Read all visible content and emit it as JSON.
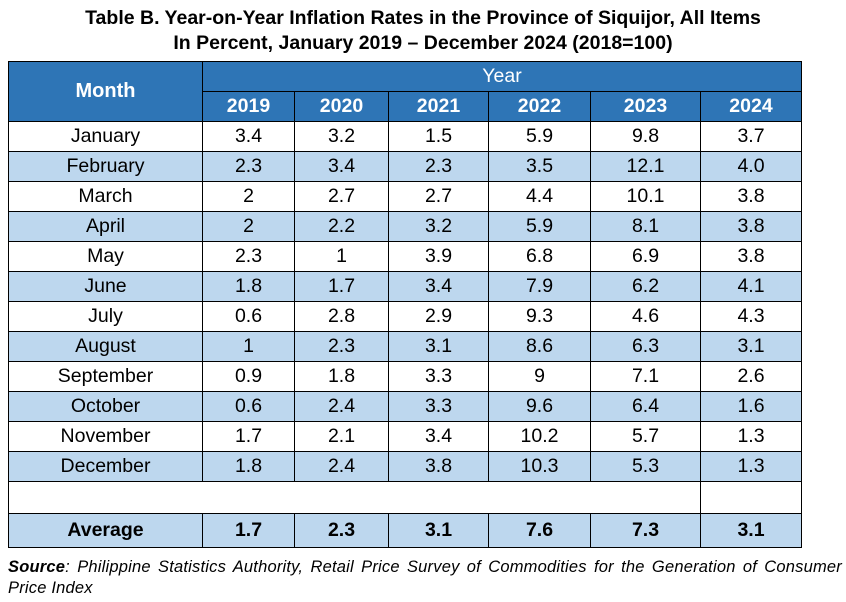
{
  "title": {
    "line1": "Table B. Year-on-Year Inflation Rates in the Province of Siquijor, All Items",
    "line2": "In Percent, January 2019 – December 2024 (2018=100)"
  },
  "table": {
    "month_header": "Month",
    "year_group_header": "Year",
    "years": [
      "2019",
      "2020",
      "2021",
      "2022",
      "2023",
      "2024"
    ],
    "rows": [
      {
        "month": "January",
        "values": [
          "3.4",
          "3.2",
          "1.5",
          "5.9",
          "9.8",
          "3.7"
        ]
      },
      {
        "month": "February",
        "values": [
          "2.3",
          "3.4",
          "2.3",
          "3.5",
          "12.1",
          "4.0"
        ]
      },
      {
        "month": "March",
        "values": [
          "2",
          "2.7",
          "2.7",
          "4.4",
          "10.1",
          "3.8"
        ]
      },
      {
        "month": "April",
        "values": [
          "2",
          "2.2",
          "3.2",
          "5.9",
          "8.1",
          "3.8"
        ]
      },
      {
        "month": "May",
        "values": [
          "2.3",
          "1",
          "3.9",
          "6.8",
          "6.9",
          "3.8"
        ]
      },
      {
        "month": "June",
        "values": [
          "1.8",
          "1.7",
          "3.4",
          "7.9",
          "6.2",
          "4.1"
        ]
      },
      {
        "month": "July",
        "values": [
          "0.6",
          "2.8",
          "2.9",
          "9.3",
          "4.6",
          "4.3"
        ]
      },
      {
        "month": "August",
        "values": [
          "1",
          "2.3",
          "3.1",
          "8.6",
          "6.3",
          "3.1"
        ]
      },
      {
        "month": "September",
        "values": [
          "0.9",
          "1.8",
          "3.3",
          "9",
          "7.1",
          "2.6"
        ]
      },
      {
        "month": "October",
        "values": [
          "0.6",
          "2.4",
          "3.3",
          "9.6",
          "6.4",
          "1.6"
        ]
      },
      {
        "month": "November",
        "values": [
          "1.7",
          "2.1",
          "3.4",
          "10.2",
          "5.7",
          "1.3"
        ]
      },
      {
        "month": "December",
        "values": [
          "1.8",
          "2.4",
          "3.8",
          "10.3",
          "5.3",
          "1.3"
        ]
      }
    ],
    "average": {
      "label": "Average",
      "values": [
        "1.7",
        "2.3",
        "3.1",
        "7.6",
        "7.3",
        "3.1"
      ]
    }
  },
  "source": {
    "label": "Source",
    "text": ": Philippine Statistics Authority, Retail Price Survey of Commodities for the Generation of Consumer Price Index"
  },
  "colors": {
    "header_bg": "#2e75b6",
    "header_text": "#ffffff",
    "alt_row_bg": "#bdd7ee"
  }
}
